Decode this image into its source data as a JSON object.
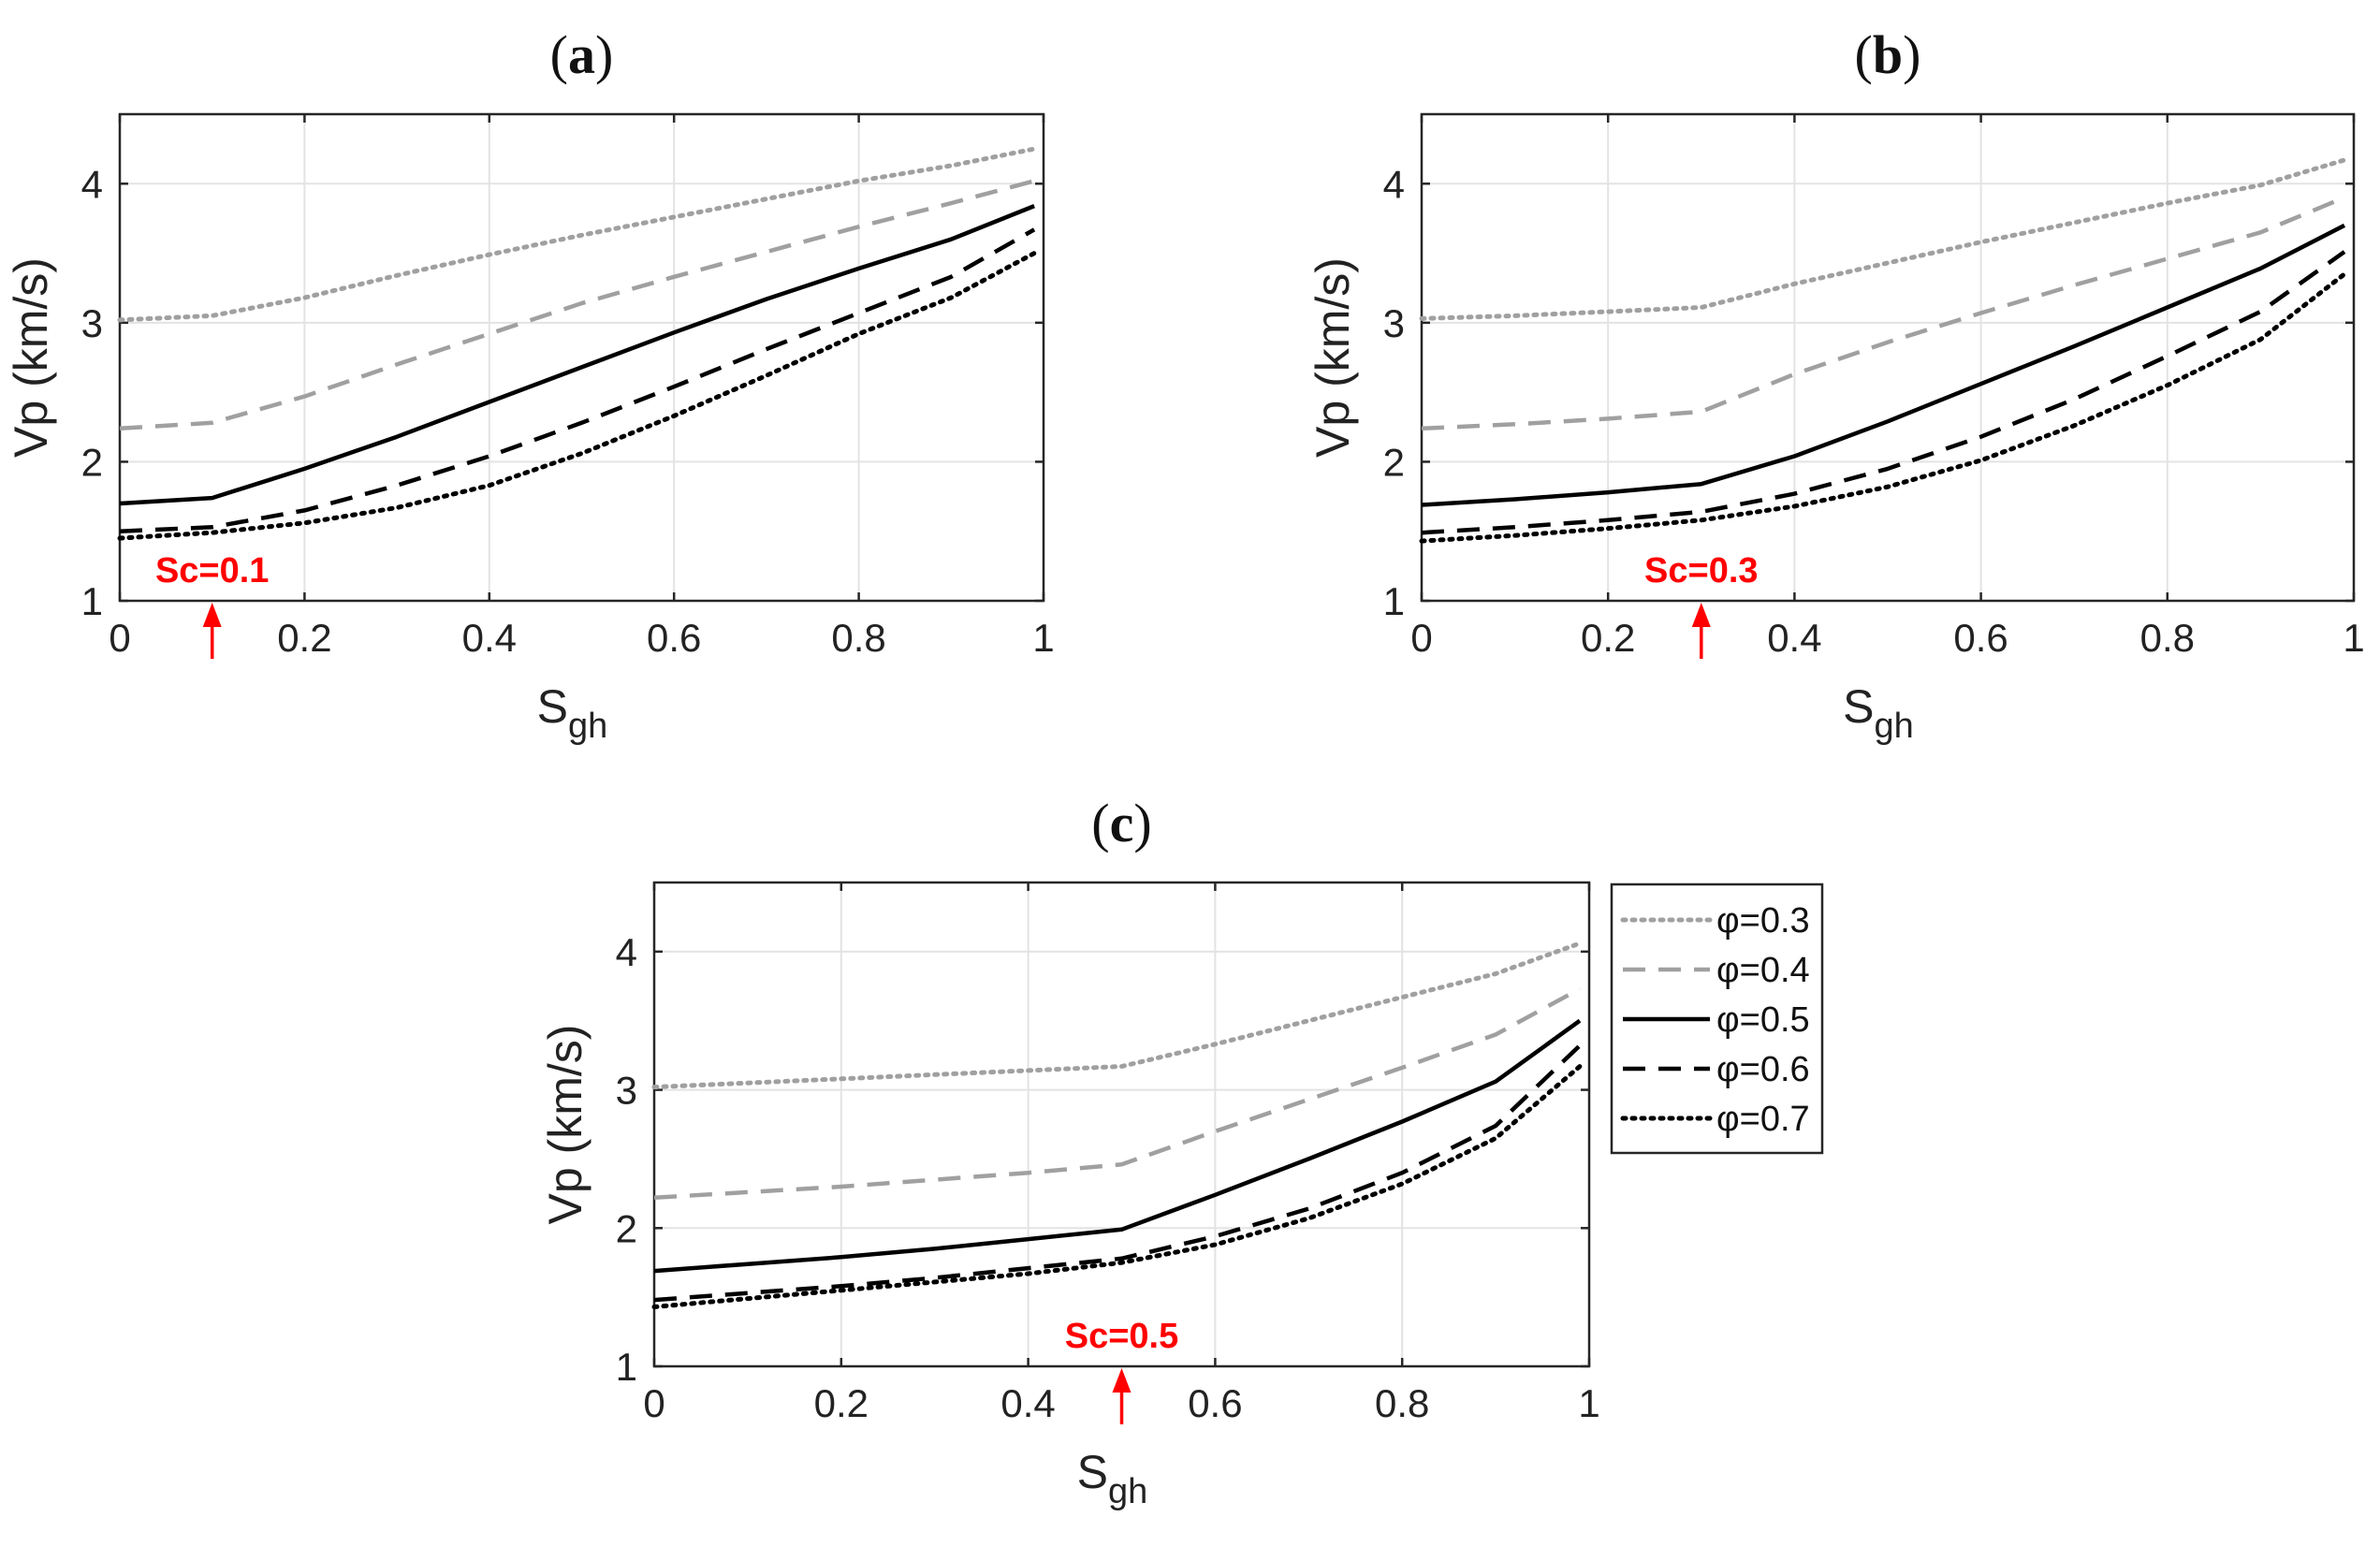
{
  "chart_data": [
    {
      "type": "line",
      "panel_label": "a",
      "xlabel": "S",
      "xlabel_sub": "gh",
      "ylabel": "Vp (km/s)",
      "xlim": [
        0,
        1
      ],
      "ylim": [
        1,
        4.5
      ],
      "xticks": [
        0,
        0.2,
        0.4,
        0.6,
        0.8,
        1
      ],
      "xtick_labels": [
        "0",
        "0.2",
        "0.4",
        "0.6",
        "0.8",
        "1"
      ],
      "yticks": [
        1,
        2,
        3,
        4
      ],
      "ytick_labels": [
        "1",
        "2",
        "3",
        "4"
      ],
      "grid": true,
      "annotation": {
        "text": "Sc=0.1",
        "x": 0.1
      },
      "series": [
        {
          "name": "φ=0.3",
          "x": [
            0,
            0.1,
            0.2,
            0.3,
            0.4,
            0.5,
            0.6,
            0.7,
            0.8,
            0.9,
            0.99
          ],
          "values": [
            3.02,
            3.05,
            3.18,
            3.34,
            3.49,
            3.63,
            3.76,
            3.89,
            4.02,
            4.13,
            4.25
          ]
        },
        {
          "name": "φ=0.4",
          "x": [
            0,
            0.1,
            0.2,
            0.3,
            0.4,
            0.5,
            0.6,
            0.7,
            0.8,
            0.9,
            0.99
          ],
          "values": [
            2.24,
            2.28,
            2.47,
            2.7,
            2.92,
            3.14,
            3.33,
            3.51,
            3.69,
            3.86,
            4.02
          ]
        },
        {
          "name": "φ=0.5",
          "x": [
            0,
            0.1,
            0.2,
            0.3,
            0.4,
            0.5,
            0.6,
            0.7,
            0.8,
            0.9,
            0.99
          ],
          "values": [
            1.7,
            1.74,
            1.95,
            2.18,
            2.43,
            2.68,
            2.93,
            3.17,
            3.39,
            3.6,
            3.84
          ]
        },
        {
          "name": "φ=0.6",
          "x": [
            0,
            0.1,
            0.2,
            0.3,
            0.4,
            0.5,
            0.6,
            0.7,
            0.8,
            0.9,
            0.99
          ],
          "values": [
            1.5,
            1.53,
            1.65,
            1.83,
            2.04,
            2.28,
            2.54,
            2.81,
            3.07,
            3.33,
            3.67
          ]
        },
        {
          "name": "φ=0.7",
          "x": [
            0,
            0.1,
            0.2,
            0.3,
            0.4,
            0.5,
            0.6,
            0.7,
            0.8,
            0.9,
            0.99
          ],
          "values": [
            1.45,
            1.49,
            1.56,
            1.67,
            1.83,
            2.06,
            2.33,
            2.62,
            2.92,
            3.18,
            3.5
          ]
        }
      ]
    },
    {
      "type": "line",
      "panel_label": "b",
      "xlabel": "S",
      "xlabel_sub": "gh",
      "ylabel": "Vp (km/s)",
      "xlim": [
        0,
        1
      ],
      "ylim": [
        1,
        4.5
      ],
      "xticks": [
        0,
        0.2,
        0.4,
        0.6,
        0.8,
        1
      ],
      "xtick_labels": [
        "0",
        "0.2",
        "0.4",
        "0.6",
        "0.8",
        "1"
      ],
      "yticks": [
        1,
        2,
        3,
        4
      ],
      "ytick_labels": [
        "1",
        "2",
        "3",
        "4"
      ],
      "grid": true,
      "annotation": {
        "text": "Sc=0.3",
        "x": 0.3
      },
      "series": [
        {
          "name": "φ=0.3",
          "x": [
            0,
            0.1,
            0.2,
            0.3,
            0.4,
            0.5,
            0.6,
            0.7,
            0.8,
            0.9,
            0.99
          ],
          "values": [
            3.03,
            3.05,
            3.08,
            3.11,
            3.28,
            3.43,
            3.58,
            3.72,
            3.86,
            3.99,
            4.17
          ]
        },
        {
          "name": "φ=0.4",
          "x": [
            0,
            0.1,
            0.2,
            0.3,
            0.4,
            0.5,
            0.6,
            0.7,
            0.8,
            0.9,
            0.99
          ],
          "values": [
            2.24,
            2.27,
            2.31,
            2.36,
            2.63,
            2.86,
            3.07,
            3.27,
            3.46,
            3.65,
            3.9
          ]
        },
        {
          "name": "φ=0.5",
          "x": [
            0,
            0.1,
            0.2,
            0.3,
            0.4,
            0.5,
            0.6,
            0.7,
            0.8,
            0.9,
            0.99
          ],
          "values": [
            1.69,
            1.73,
            1.78,
            1.84,
            2.04,
            2.29,
            2.56,
            2.83,
            3.11,
            3.39,
            3.7
          ]
        },
        {
          "name": "φ=0.6",
          "x": [
            0,
            0.1,
            0.2,
            0.3,
            0.4,
            0.5,
            0.6,
            0.7,
            0.8,
            0.9,
            0.99
          ],
          "values": [
            1.49,
            1.53,
            1.58,
            1.64,
            1.77,
            1.95,
            2.18,
            2.45,
            2.76,
            3.08,
            3.51
          ]
        },
        {
          "name": "φ=0.7",
          "x": [
            0,
            0.1,
            0.2,
            0.3,
            0.4,
            0.5,
            0.6,
            0.7,
            0.8,
            0.9,
            0.99
          ],
          "values": [
            1.43,
            1.47,
            1.52,
            1.58,
            1.68,
            1.82,
            2.01,
            2.26,
            2.55,
            2.88,
            3.35
          ]
        }
      ]
    },
    {
      "type": "line",
      "panel_label": "c",
      "xlabel": "S",
      "xlabel_sub": "gh",
      "ylabel": "Vp (km/s)",
      "xlim": [
        0,
        1
      ],
      "ylim": [
        1,
        4.5
      ],
      "xticks": [
        0,
        0.2,
        0.4,
        0.6,
        0.8,
        1
      ],
      "xtick_labels": [
        "0",
        "0.2",
        "0.4",
        "0.6",
        "0.8",
        "1"
      ],
      "yticks": [
        1,
        2,
        3,
        4
      ],
      "ytick_labels": [
        "1",
        "2",
        "3",
        "4"
      ],
      "grid": true,
      "annotation": {
        "text": "Sc=0.5",
        "x": 0.5
      },
      "legend": {
        "position": "outside-right",
        "entries": [
          "φ=0.3",
          "φ=0.4",
          "φ=0.5",
          "φ=0.6",
          "φ=0.7"
        ]
      },
      "series": [
        {
          "name": "φ=0.3",
          "x": [
            0,
            0.1,
            0.2,
            0.3,
            0.4,
            0.5,
            0.6,
            0.7,
            0.8,
            0.9,
            0.99
          ],
          "values": [
            3.02,
            3.05,
            3.08,
            3.11,
            3.14,
            3.17,
            3.33,
            3.5,
            3.67,
            3.84,
            4.06
          ]
        },
        {
          "name": "φ=0.4",
          "x": [
            0,
            0.1,
            0.2,
            0.3,
            0.4,
            0.5,
            0.6,
            0.7,
            0.8,
            0.9,
            0.99
          ],
          "values": [
            2.22,
            2.26,
            2.3,
            2.35,
            2.4,
            2.46,
            2.7,
            2.93,
            3.16,
            3.4,
            3.73
          ]
        },
        {
          "name": "φ=0.5",
          "x": [
            0,
            0.1,
            0.2,
            0.3,
            0.4,
            0.5,
            0.6,
            0.7,
            0.8,
            0.9,
            0.99
          ],
          "values": [
            1.69,
            1.74,
            1.79,
            1.85,
            1.92,
            1.99,
            2.24,
            2.5,
            2.77,
            3.06,
            3.5
          ]
        },
        {
          "name": "φ=0.6",
          "x": [
            0,
            0.1,
            0.2,
            0.3,
            0.4,
            0.5,
            0.6,
            0.7,
            0.8,
            0.9,
            0.99
          ],
          "values": [
            1.48,
            1.53,
            1.58,
            1.64,
            1.71,
            1.78,
            1.94,
            2.14,
            2.4,
            2.74,
            3.32
          ]
        },
        {
          "name": "φ=0.7",
          "x": [
            0,
            0.1,
            0.2,
            0.3,
            0.4,
            0.5,
            0.6,
            0.7,
            0.8,
            0.9,
            0.99
          ],
          "values": [
            1.43,
            1.49,
            1.55,
            1.61,
            1.67,
            1.75,
            1.88,
            2.07,
            2.32,
            2.65,
            3.17
          ]
        }
      ]
    }
  ],
  "series_styles": {
    "φ=0.3": {
      "color": "#a0a0a0",
      "dash": "dotted"
    },
    "φ=0.4": {
      "color": "#a0a0a0",
      "dash": "dashed"
    },
    "φ=0.5": {
      "color": "#000000",
      "dash": "solid"
    },
    "φ=0.6": {
      "color": "#000000",
      "dash": "dashed"
    },
    "φ=0.7": {
      "color": "#000000",
      "dash": "dotted"
    }
  },
  "annotation_color": "#ff0000"
}
